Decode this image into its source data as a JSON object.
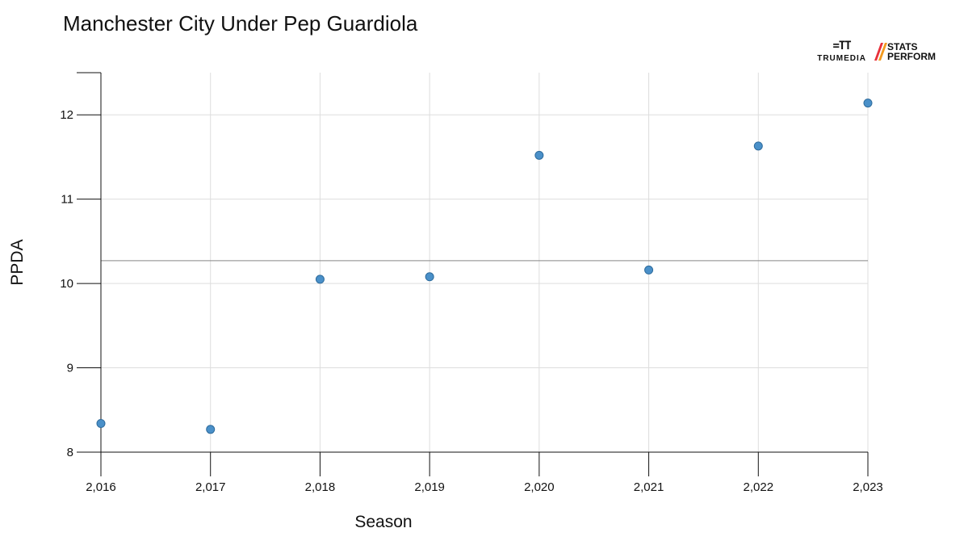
{
  "title": "Manchester City Under Pep Guardiola",
  "logos": {
    "trumedia_mark": "=TT",
    "trumedia_word": "TRUMEDIA",
    "stats_line1": "STATS",
    "stats_line2": "PERFORM",
    "stats_colors": [
      "#e8313a",
      "#f39a1e"
    ]
  },
  "colors": {
    "point_fill": "#4a90c9",
    "point_stroke": "#2e6b9c",
    "grid": "#dddddd",
    "axis": "#111111",
    "reference_line": "#888888"
  },
  "chart_data": {
    "type": "scatter",
    "title": "Manchester City Under Pep Guardiola",
    "xlabel": "Season",
    "ylabel": "PPDA",
    "x": [
      2016,
      2017,
      2018,
      2019,
      2020,
      2021,
      2022,
      2023
    ],
    "y": [
      8.34,
      8.27,
      10.05,
      10.08,
      11.52,
      10.16,
      11.63,
      12.14
    ],
    "x_tick_labels": [
      "2,016",
      "2,017",
      "2,018",
      "2,019",
      "2,020",
      "2,021",
      "2,022",
      "2,023"
    ],
    "y_ticks": [
      8,
      9,
      10,
      11,
      12
    ],
    "xlim": [
      2016,
      2023
    ],
    "ylim": [
      8,
      12.5
    ],
    "reference_line_y": 10.27,
    "grid": true
  }
}
